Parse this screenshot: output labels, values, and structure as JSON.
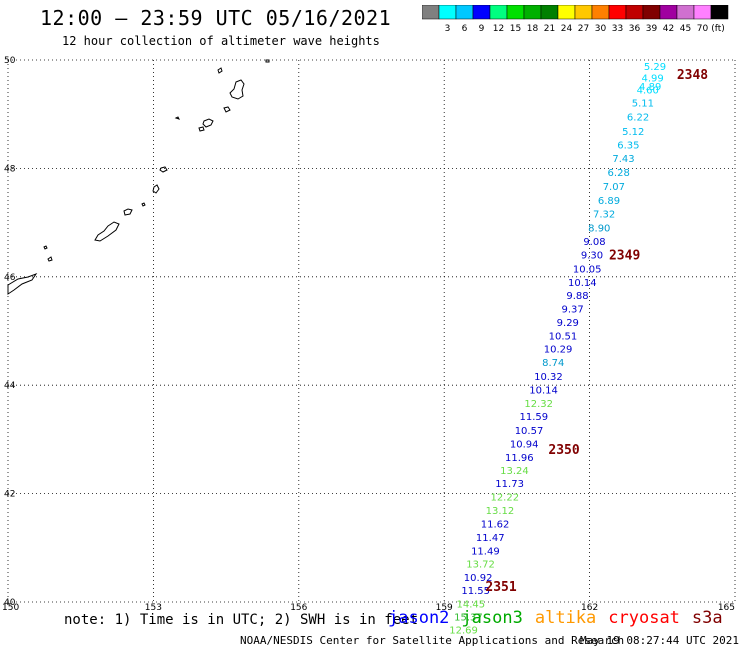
{
  "header": {
    "title": "12:00 – 23:59 UTC 05/16/2021",
    "subtitle": "12 hour collection of altimeter wave heights"
  },
  "color_scale": {
    "unit": "(ft)",
    "bins": [
      {
        "label": "",
        "color": "#808080"
      },
      {
        "label": "3",
        "color": "#00ffff"
      },
      {
        "label": "6",
        "color": "#00c8ff"
      },
      {
        "label": "9",
        "color": "#0000ff"
      },
      {
        "label": "12",
        "color": "#00ff80"
      },
      {
        "label": "15",
        "color": "#00e000"
      },
      {
        "label": "18",
        "color": "#00b000"
      },
      {
        "label": "21",
        "color": "#008000"
      },
      {
        "label": "24",
        "color": "#ffff00"
      },
      {
        "label": "27",
        "color": "#ffc800"
      },
      {
        "label": "30",
        "color": "#ff8000"
      },
      {
        "label": "33",
        "color": "#ff0000"
      },
      {
        "label": "36",
        "color": "#c00000"
      },
      {
        "label": "39",
        "color": "#800000"
      },
      {
        "label": "42",
        "color": "#a000a0"
      },
      {
        "label": "45",
        "color": "#d070d0"
      },
      {
        "label": "70",
        "color": "#ff80ff"
      },
      {
        "label": "",
        "color": "#000000"
      }
    ]
  },
  "map": {
    "lon_ticks": [
      "150",
      "153",
      "156",
      "159",
      "162",
      "165"
    ],
    "lat_ticks": [
      "50",
      "48",
      "46",
      "44",
      "42",
      "40"
    ],
    "lon_range": [
      150,
      165
    ],
    "lat_range": [
      40,
      50
    ]
  },
  "passes": [
    {
      "label": "2348",
      "lon": 163.8,
      "lat": 49.65
    },
    {
      "label": "2349",
      "lon": 162.4,
      "lat": 46.32
    },
    {
      "label": "2350",
      "lon": 161.15,
      "lat": 42.73
    },
    {
      "label": "2351",
      "lon": 159.85,
      "lat": 40.2
    }
  ],
  "readings": [
    {
      "value": "5.29",
      "lon": 163.35,
      "lat": 49.82,
      "color": "#00ddff"
    },
    {
      "value": "4.99",
      "lon": 163.3,
      "lat": 49.6,
      "color": "#00ddff"
    },
    {
      "value": "4.89",
      "lon": 163.25,
      "lat": 49.45,
      "color": "#00ddff"
    },
    {
      "value": "4.60",
      "lon": 163.2,
      "lat": 49.38,
      "color": "#00ddff"
    },
    {
      "value": "5.11",
      "lon": 163.1,
      "lat": 49.14,
      "color": "#00bbee"
    },
    {
      "value": "6.22",
      "lon": 163.0,
      "lat": 48.88,
      "color": "#00bbee"
    },
    {
      "value": "5.12",
      "lon": 162.9,
      "lat": 48.62,
      "color": "#00bbee"
    },
    {
      "value": "6.35",
      "lon": 162.8,
      "lat": 48.37,
      "color": "#00bbee"
    },
    {
      "value": "7.43",
      "lon": 162.7,
      "lat": 48.12,
      "color": "#00aadd"
    },
    {
      "value": "6.28",
      "lon": 162.6,
      "lat": 47.86,
      "color": "#00aadd"
    },
    {
      "value": "7.07",
      "lon": 162.5,
      "lat": 47.6,
      "color": "#00aadd"
    },
    {
      "value": "6.89",
      "lon": 162.4,
      "lat": 47.34,
      "color": "#00aadd"
    },
    {
      "value": "7.32",
      "lon": 162.3,
      "lat": 47.09,
      "color": "#00aadd"
    },
    {
      "value": "8.90",
      "lon": 162.2,
      "lat": 46.84,
      "color": "#0099cc"
    },
    {
      "value": "9.08",
      "lon": 162.1,
      "lat": 46.59,
      "color": "#0000cc"
    },
    {
      "value": "9.30",
      "lon": 162.05,
      "lat": 46.34,
      "color": "#0000cc"
    },
    {
      "value": "10.05",
      "lon": 161.95,
      "lat": 46.08,
      "color": "#0000cc"
    },
    {
      "value": "10.14",
      "lon": 161.85,
      "lat": 45.83,
      "color": "#0000cc"
    },
    {
      "value": "9.88",
      "lon": 161.75,
      "lat": 45.59,
      "color": "#0000cc"
    },
    {
      "value": "9.37",
      "lon": 161.65,
      "lat": 45.34,
      "color": "#0000cc"
    },
    {
      "value": "9.29",
      "lon": 161.55,
      "lat": 45.09,
      "color": "#0000cc"
    },
    {
      "value": "10.51",
      "lon": 161.45,
      "lat": 44.84,
      "color": "#0000cc"
    },
    {
      "value": "10.29",
      "lon": 161.35,
      "lat": 44.6,
      "color": "#0000cc"
    },
    {
      "value": "8.74",
      "lon": 161.25,
      "lat": 44.35,
      "color": "#0099cc"
    },
    {
      "value": "10.32",
      "lon": 161.15,
      "lat": 44.1,
      "color": "#0000cc"
    },
    {
      "value": "10.14",
      "lon": 161.05,
      "lat": 43.85,
      "color": "#0000cc"
    },
    {
      "value": "12.32",
      "lon": 160.95,
      "lat": 43.6,
      "color": "#66dd44"
    },
    {
      "value": "11.59",
      "lon": 160.85,
      "lat": 43.36,
      "color": "#0000cc"
    },
    {
      "value": "10.57",
      "lon": 160.75,
      "lat": 43.1,
      "color": "#0000cc"
    },
    {
      "value": "10.94",
      "lon": 160.65,
      "lat": 42.85,
      "color": "#0000cc"
    },
    {
      "value": "11.96",
      "lon": 160.55,
      "lat": 42.6,
      "color": "#0000cc"
    },
    {
      "value": "13.24",
      "lon": 160.45,
      "lat": 42.36,
      "color": "#66dd44"
    },
    {
      "value": "11.73",
      "lon": 160.35,
      "lat": 42.12,
      "color": "#0000cc"
    },
    {
      "value": "12.22",
      "lon": 160.25,
      "lat": 41.87,
      "color": "#66dd44"
    },
    {
      "value": "13.12",
      "lon": 160.15,
      "lat": 41.62,
      "color": "#66dd44"
    },
    {
      "value": "11.62",
      "lon": 160.05,
      "lat": 41.37,
      "color": "#0000cc"
    },
    {
      "value": "11.47",
      "lon": 159.95,
      "lat": 41.13,
      "color": "#0000cc"
    },
    {
      "value": "11.49",
      "lon": 159.85,
      "lat": 40.88,
      "color": "#0000cc"
    },
    {
      "value": "13.72",
      "lon": 159.75,
      "lat": 40.64,
      "color": "#66dd44"
    },
    {
      "value": "10.92",
      "lon": 159.7,
      "lat": 40.39,
      "color": "#0000cc"
    },
    {
      "value": "11.55",
      "lon": 159.65,
      "lat": 40.15,
      "color": "#0000cc"
    },
    {
      "value": "14.45",
      "lon": 159.55,
      "lat": 39.9,
      "color": "#66dd44"
    },
    {
      "value": "15.37",
      "lon": 159.5,
      "lat": 39.66,
      "color": "#33bb33"
    },
    {
      "value": "12.69",
      "lon": 159.4,
      "lat": 39.42,
      "color": "#66dd44"
    }
  ],
  "footer": {
    "note": "note:  1) Time is in UTC;  2) SWH is in feet",
    "credit": "NOAA/NESDIS Center for Satellite Applications and Research",
    "timestamp": "May 19 08:27:44 UTC 2021"
  },
  "legend": [
    {
      "label": "jason2",
      "color": "#0000ff"
    },
    {
      "label": "jason3",
      "color": "#00aa00"
    },
    {
      "label": "altika",
      "color": "#ff9900"
    },
    {
      "label": "cryosat",
      "color": "#ff0000"
    },
    {
      "label": "s3a",
      "color": "#800000"
    }
  ]
}
